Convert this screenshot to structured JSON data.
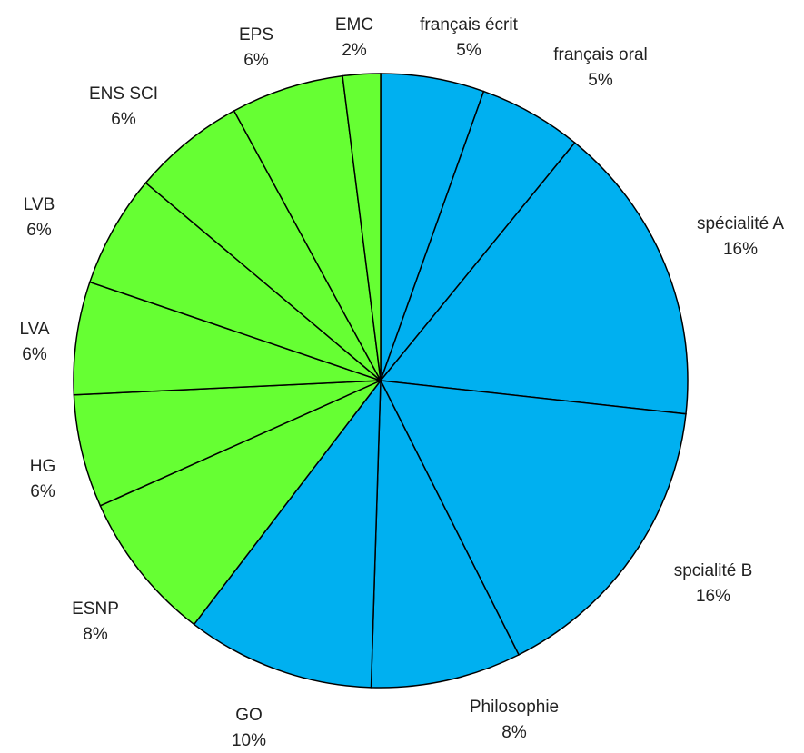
{
  "chart_data": {
    "type": "pie",
    "title": "",
    "start_angle_deg": 0,
    "direction": "clockwise",
    "legend": "none",
    "slices": [
      {
        "label": "français écrit",
        "value_label": "5%",
        "value": 5.5,
        "color": "#00B0F0"
      },
      {
        "label": "français oral",
        "value_label": "5%",
        "value": 5.5,
        "color": "#00B0F0"
      },
      {
        "label": "spécialité A",
        "value_label": "16%",
        "value": 16.0,
        "color": "#00B0F0"
      },
      {
        "label": "spcialité B",
        "value_label": "16%",
        "value": 16.0,
        "color": "#00B0F0"
      },
      {
        "label": "Philosophie",
        "value_label": "8%",
        "value": 8.0,
        "color": "#00B0F0"
      },
      {
        "label": "GO",
        "value_label": "10%",
        "value": 10.0,
        "color": "#00B0F0"
      },
      {
        "label": "ESNP",
        "value_label": "8%",
        "value": 8.0,
        "color": "#66FF33"
      },
      {
        "label": "HG",
        "value_label": "6%",
        "value": 6.0,
        "color": "#66FF33"
      },
      {
        "label": "LVA",
        "value_label": "6%",
        "value": 6.0,
        "color": "#66FF33"
      },
      {
        "label": "LVB",
        "value_label": "6%",
        "value": 6.0,
        "color": "#66FF33"
      },
      {
        "label": "ENS SCI",
        "value_label": "6%",
        "value": 6.0,
        "color": "#66FF33"
      },
      {
        "label": "EPS",
        "value_label": "6%",
        "value": 6.0,
        "color": "#66FF33"
      },
      {
        "label": "EMC",
        "value_label": "2%",
        "value": 2.0,
        "color": "#66FF33"
      }
    ]
  }
}
